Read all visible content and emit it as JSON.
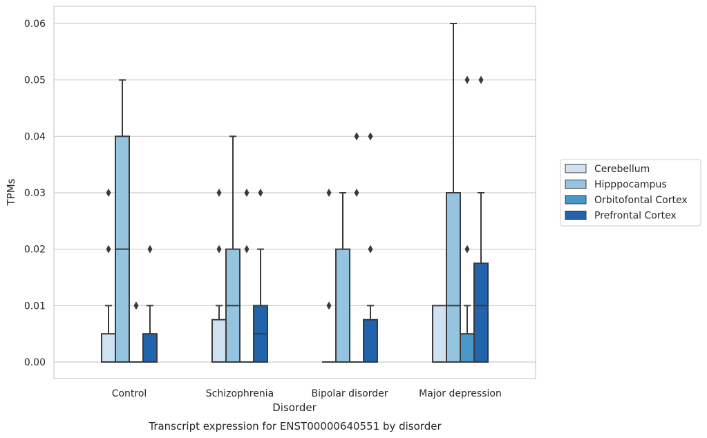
{
  "chart_data": {
    "type": "box",
    "caption": "Transcript expression for ENST00000640551 by disorder",
    "xlabel": "Disorder",
    "ylabel": "TPMs",
    "ylim": [
      -0.003,
      0.063
    ],
    "yticks": [
      0.0,
      0.01,
      0.02,
      0.03,
      0.04,
      0.05,
      0.06
    ],
    "ytick_labels": [
      "0.00",
      "0.01",
      "0.02",
      "0.03",
      "0.04",
      "0.05",
      "0.06"
    ],
    "grid": "horizontal",
    "legend_position": "right",
    "categories": [
      "Control",
      "Schizophrenia",
      "Bipolar disorder",
      "Major depression"
    ],
    "series": [
      {
        "name": "Cerebellum",
        "color": "#d0e1f2",
        "boxes": [
          {
            "q1": 0.0,
            "median": 0.0,
            "q3": 0.005,
            "whisker_low": 0.0,
            "whisker_high": 0.01,
            "outliers": [
              0.02,
              0.03
            ]
          },
          {
            "q1": 0.0,
            "median": 0.0,
            "q3": 0.0075,
            "whisker_low": 0.0,
            "whisker_high": 0.01,
            "outliers": [
              0.02,
              0.03
            ]
          },
          {
            "q1": 0.0,
            "median": 0.0,
            "q3": 0.0,
            "whisker_low": 0.0,
            "whisker_high": 0.0,
            "outliers": [
              0.01,
              0.03
            ]
          },
          {
            "q1": 0.0,
            "median": 0.0,
            "q3": 0.01,
            "whisker_low": 0.0,
            "whisker_high": 0.01,
            "outliers": []
          }
        ]
      },
      {
        "name": "Hipppocampus",
        "color": "#94c4df",
        "boxes": [
          {
            "q1": 0.0,
            "median": 0.02,
            "q3": 0.04,
            "whisker_low": 0.0,
            "whisker_high": 0.05,
            "outliers": []
          },
          {
            "q1": 0.0,
            "median": 0.01,
            "q3": 0.02,
            "whisker_low": 0.0,
            "whisker_high": 0.04,
            "outliers": []
          },
          {
            "q1": 0.0,
            "median": 0.0,
            "q3": 0.02,
            "whisker_low": 0.0,
            "whisker_high": 0.03,
            "outliers": []
          },
          {
            "q1": 0.0,
            "median": 0.01,
            "q3": 0.03,
            "whisker_low": 0.0,
            "whisker_high": 0.06,
            "outliers": []
          }
        ]
      },
      {
        "name": "Orbitofontal Cortex",
        "color": "#4a98c9",
        "boxes": [
          {
            "q1": 0.0,
            "median": 0.0,
            "q3": 0.0,
            "whisker_low": 0.0,
            "whisker_high": 0.0,
            "outliers": [
              0.01
            ]
          },
          {
            "q1": 0.0,
            "median": 0.0,
            "q3": 0.0,
            "whisker_low": 0.0,
            "whisker_high": 0.0,
            "outliers": [
              0.02,
              0.03
            ]
          },
          {
            "q1": 0.0,
            "median": 0.0,
            "q3": 0.0,
            "whisker_low": 0.0,
            "whisker_high": 0.0,
            "outliers": [
              0.03,
              0.04
            ]
          },
          {
            "q1": 0.0,
            "median": 0.0,
            "q3": 0.005,
            "whisker_low": 0.0,
            "whisker_high": 0.01,
            "outliers": [
              0.02,
              0.05
            ]
          }
        ]
      },
      {
        "name": "Prefrontal Cortex",
        "color": "#2164ab",
        "boxes": [
          {
            "q1": 0.0,
            "median": 0.0,
            "q3": 0.005,
            "whisker_low": 0.0,
            "whisker_high": 0.01,
            "outliers": [
              0.02
            ]
          },
          {
            "q1": 0.0,
            "median": 0.005,
            "q3": 0.01,
            "whisker_low": 0.0,
            "whisker_high": 0.02,
            "outliers": [
              0.03
            ]
          },
          {
            "q1": 0.0,
            "median": 0.0,
            "q3": 0.0075,
            "whisker_low": 0.0,
            "whisker_high": 0.01,
            "outliers": [
              0.02,
              0.04
            ]
          },
          {
            "q1": 0.0,
            "median": 0.01,
            "q3": 0.0175,
            "whisker_low": 0.0,
            "whisker_high": 0.03,
            "outliers": [
              0.05
            ]
          }
        ]
      }
    ]
  }
}
